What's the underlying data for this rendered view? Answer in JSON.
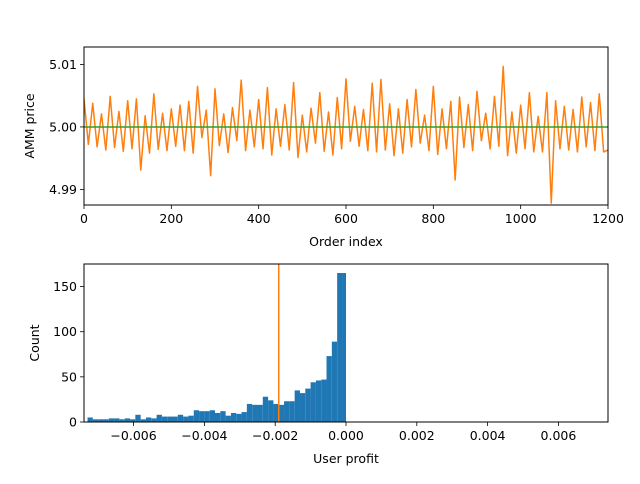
{
  "chart_data": [
    {
      "type": "line",
      "xlabel": "Order index",
      "ylabel": "AMM price",
      "xlim": [
        0,
        1200
      ],
      "ylim": [
        4.9875,
        5.0128
      ],
      "xticks": [
        0,
        200,
        400,
        600,
        800,
        1000,
        1200
      ],
      "xtick_labels": [
        "0",
        "200",
        "400",
        "600",
        "800",
        "1000",
        "1200"
      ],
      "yticks": [
        4.99,
        5.0,
        5.01
      ],
      "ytick_labels": [
        "4.99",
        "5.00",
        "5.01"
      ],
      "grid": false,
      "series": [
        {
          "color": "#ff7f0e",
          "x": [
            0,
            10,
            20,
            30,
            40,
            50,
            60,
            70,
            80,
            90,
            100,
            110,
            120,
            130,
            140,
            150,
            160,
            170,
            180,
            190,
            200,
            210,
            220,
            230,
            240,
            250,
            260,
            270,
            280,
            290,
            300,
            310,
            320,
            330,
            340,
            350,
            360,
            370,
            380,
            390,
            400,
            410,
            420,
            430,
            440,
            450,
            460,
            470,
            480,
            490,
            500,
            510,
            520,
            530,
            540,
            550,
            560,
            570,
            580,
            590,
            600,
            610,
            620,
            630,
            640,
            650,
            660,
            670,
            680,
            690,
            700,
            710,
            720,
            730,
            740,
            750,
            760,
            770,
            780,
            790,
            800,
            810,
            820,
            830,
            840,
            850,
            860,
            870,
            880,
            890,
            900,
            910,
            920,
            930,
            940,
            950,
            960,
            970,
            980,
            990,
            1000,
            1010,
            1020,
            1030,
            1040,
            1050,
            1060,
            1070,
            1080,
            1090,
            1100,
            1110,
            1120,
            1130,
            1140,
            1150,
            1160,
            1170,
            1180,
            1190,
            1200
          ],
          "values": [
            5.0045,
            4.9972,
            5.0038,
            4.9968,
            5.0021,
            4.9963,
            5.0049,
            4.9967,
            5.0025,
            4.9961,
            5.0042,
            4.9965,
            5.0045,
            4.9931,
            5.0018,
            4.9958,
            5.0053,
            4.9964,
            5.0022,
            4.9962,
            5.0029,
            4.9969,
            5.0035,
            4.9962,
            5.0041,
            4.9958,
            5.0065,
            4.9983,
            5.0027,
            4.9922,
            5.0061,
            4.997,
            5.0021,
            4.9959,
            5.0031,
            4.9978,
            5.0075,
            4.9962,
            5.0027,
            4.9968,
            5.0044,
            4.9965,
            5.0063,
            4.9955,
            5.0029,
            4.9969,
            5.0036,
            4.9963,
            5.0071,
            4.9951,
            5.0019,
            4.996,
            5.003,
            4.9974,
            5.0055,
            4.9961,
            5.0024,
            4.9955,
            5.0047,
            4.9965,
            5.0077,
            4.9977,
            5.0033,
            4.9969,
            5.0028,
            4.9962,
            5.007,
            4.996,
            5.0076,
            4.9963,
            5.0037,
            4.9954,
            5.0029,
            4.9958,
            5.0044,
            4.9968,
            5.006,
            4.9974,
            5.0019,
            4.9962,
            5.0065,
            4.9956,
            5.0029,
            4.9965,
            5.0041,
            4.9915,
            5.0048,
            4.9967,
            5.0036,
            4.9962,
            5.0057,
            4.9978,
            5.0022,
            4.9965,
            5.0049,
            4.9969,
            5.0097,
            4.9954,
            5.0024,
            4.9958,
            5.0035,
            4.9965,
            5.0055,
            4.996,
            5.0017,
            4.996,
            5.0055,
            4.9878,
            5.0042,
            4.9965,
            5.0033,
            4.9963,
            5.0028,
            4.996,
            5.0048,
            4.9968,
            5.0039,
            4.9962,
            5.0053,
            4.996,
            4.9963
          ]
        },
        {
          "color": "#2ca02c",
          "x": [
            0,
            1200
          ],
          "values": [
            5.0,
            5.0
          ]
        }
      ]
    },
    {
      "type": "bar",
      "subtype": "histogram",
      "xlabel": "User profit",
      "ylabel": "Count",
      "xlim": [
        -0.0074,
        0.0074
      ],
      "ylim": [
        0,
        175
      ],
      "xticks": [
        -0.006,
        -0.004,
        -0.002,
        0.0,
        0.002,
        0.004,
        0.006
      ],
      "xtick_labels": [
        "−0.006",
        "−0.004",
        "−0.002",
        "0.000",
        "0.002",
        "0.004",
        "0.006"
      ],
      "yticks": [
        0,
        50,
        100,
        150
      ],
      "ytick_labels": [
        "0",
        "50",
        "100",
        "150"
      ],
      "grid": false,
      "bar_color": "#1f77b4",
      "bin_edges": [
        -0.0073,
        -0.00715,
        -0.007,
        -0.00685,
        -0.0067,
        -0.00655,
        -0.0064,
        -0.00625,
        -0.0061,
        -0.00595,
        -0.0058,
        -0.00565,
        -0.0055,
        -0.00535,
        -0.0052,
        -0.00505,
        -0.0049,
        -0.00475,
        -0.0046,
        -0.00445,
        -0.0043,
        -0.00415,
        -0.004,
        -0.00385,
        -0.0037,
        -0.00355,
        -0.0034,
        -0.00325,
        -0.0031,
        -0.00295,
        -0.0028,
        -0.00265,
        -0.0025,
        -0.00235,
        -0.0022,
        -0.00205,
        -0.0019,
        -0.00175,
        -0.0016,
        -0.00145,
        -0.0013,
        -0.00115,
        -0.001,
        -0.00085,
        -0.0007,
        -0.00055,
        -0.0004,
        -0.00025,
        -0.0001,
        0.0
      ],
      "counts": [
        5,
        3,
        3,
        3,
        4,
        4,
        3,
        4,
        3,
        8,
        3,
        5,
        4,
        8,
        6,
        6,
        6,
        8,
        6,
        7,
        13,
        12,
        12,
        13,
        10,
        12,
        7,
        10,
        9,
        11,
        20,
        19,
        19,
        28,
        24,
        20,
        19,
        23,
        23,
        35,
        32,
        37,
        44,
        46,
        47,
        73,
        89,
        165,
        165
      ],
      "vline": {
        "x": -0.0019,
        "color": "#ff7f0e"
      }
    }
  ]
}
